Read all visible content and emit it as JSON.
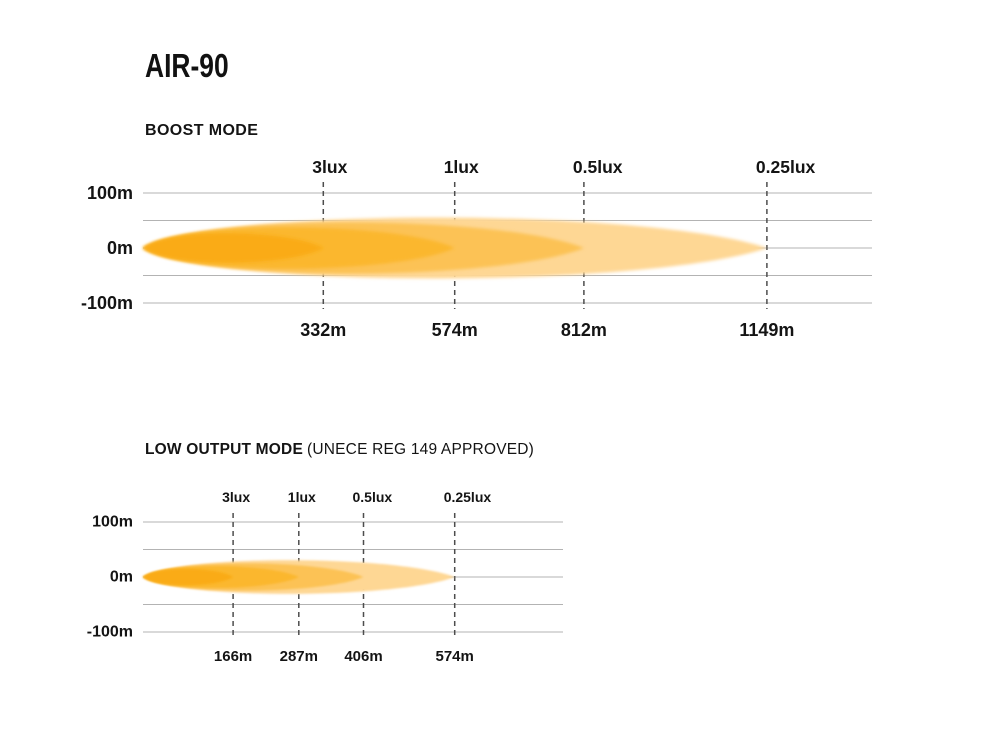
{
  "title": "AIR-90",
  "style": {
    "background": "#FFFFFF",
    "text_color": "#141414",
    "grid_color": "#B3B3B3",
    "dash_color": "#4D4D4D",
    "beam_colors_inner_to_outer": [
      "#FAAB12",
      "#FBB72F",
      "#FCC254",
      "#FED794"
    ]
  },
  "chart_data": [
    {
      "type": "area",
      "title": "BOOST MODE",
      "subtitle": "",
      "x_unit": "m",
      "ylim": [
        -100,
        100
      ],
      "grid": true,
      "y_gridline_values": [
        100,
        50,
        0,
        -50,
        -100
      ],
      "y_ticks": [
        {
          "value": 100,
          "label": "100m"
        },
        {
          "value": 0,
          "label": "0m"
        },
        {
          "value": -100,
          "label": "-100m"
        }
      ],
      "levels": [
        {
          "lux_label": "3lux",
          "lux": 3,
          "distance_m": 332,
          "distance_label": "332m",
          "beam_halfwidth_m": 27,
          "color": "#FAAB12"
        },
        {
          "lux_label": "1lux",
          "lux": 1,
          "distance_m": 574,
          "distance_label": "574m",
          "beam_halfwidth_m": 38,
          "color": "#FBB72F"
        },
        {
          "lux_label": "0.5lux",
          "lux": 0.5,
          "distance_m": 812,
          "distance_label": "812m",
          "beam_halfwidth_m": 47,
          "color": "#FCC254"
        },
        {
          "lux_label": "0.25lux",
          "lux": 0.25,
          "distance_m": 1149,
          "distance_label": "1149m",
          "beam_halfwidth_m": 56,
          "color": "#FED794"
        }
      ]
    },
    {
      "type": "area",
      "title": "LOW OUTPUT MODE",
      "subtitle": "(UNECE REG 149 APPROVED)",
      "x_unit": "m",
      "ylim": [
        -100,
        100
      ],
      "grid": true,
      "y_gridline_values": [
        100,
        50,
        0,
        -50,
        -100
      ],
      "y_ticks": [
        {
          "value": 100,
          "label": "100m"
        },
        {
          "value": 0,
          "label": "0m"
        },
        {
          "value": -100,
          "label": "-100m"
        }
      ],
      "levels": [
        {
          "lux_label": "3lux",
          "lux": 3,
          "distance_m": 166,
          "distance_label": "166m",
          "beam_halfwidth_m": 15,
          "color": "#FAAB12"
        },
        {
          "lux_label": "1lux",
          "lux": 1,
          "distance_m": 287,
          "distance_label": "287m",
          "beam_halfwidth_m": 20,
          "color": "#FBB72F"
        },
        {
          "lux_label": "0.5lux",
          "lux": 0.5,
          "distance_m": 406,
          "distance_label": "406m",
          "beam_halfwidth_m": 25,
          "color": "#FCC254"
        },
        {
          "lux_label": "0.25lux",
          "lux": 0.25,
          "distance_m": 574,
          "distance_label": "574m",
          "beam_halfwidth_m": 31,
          "color": "#FED794"
        }
      ]
    }
  ]
}
